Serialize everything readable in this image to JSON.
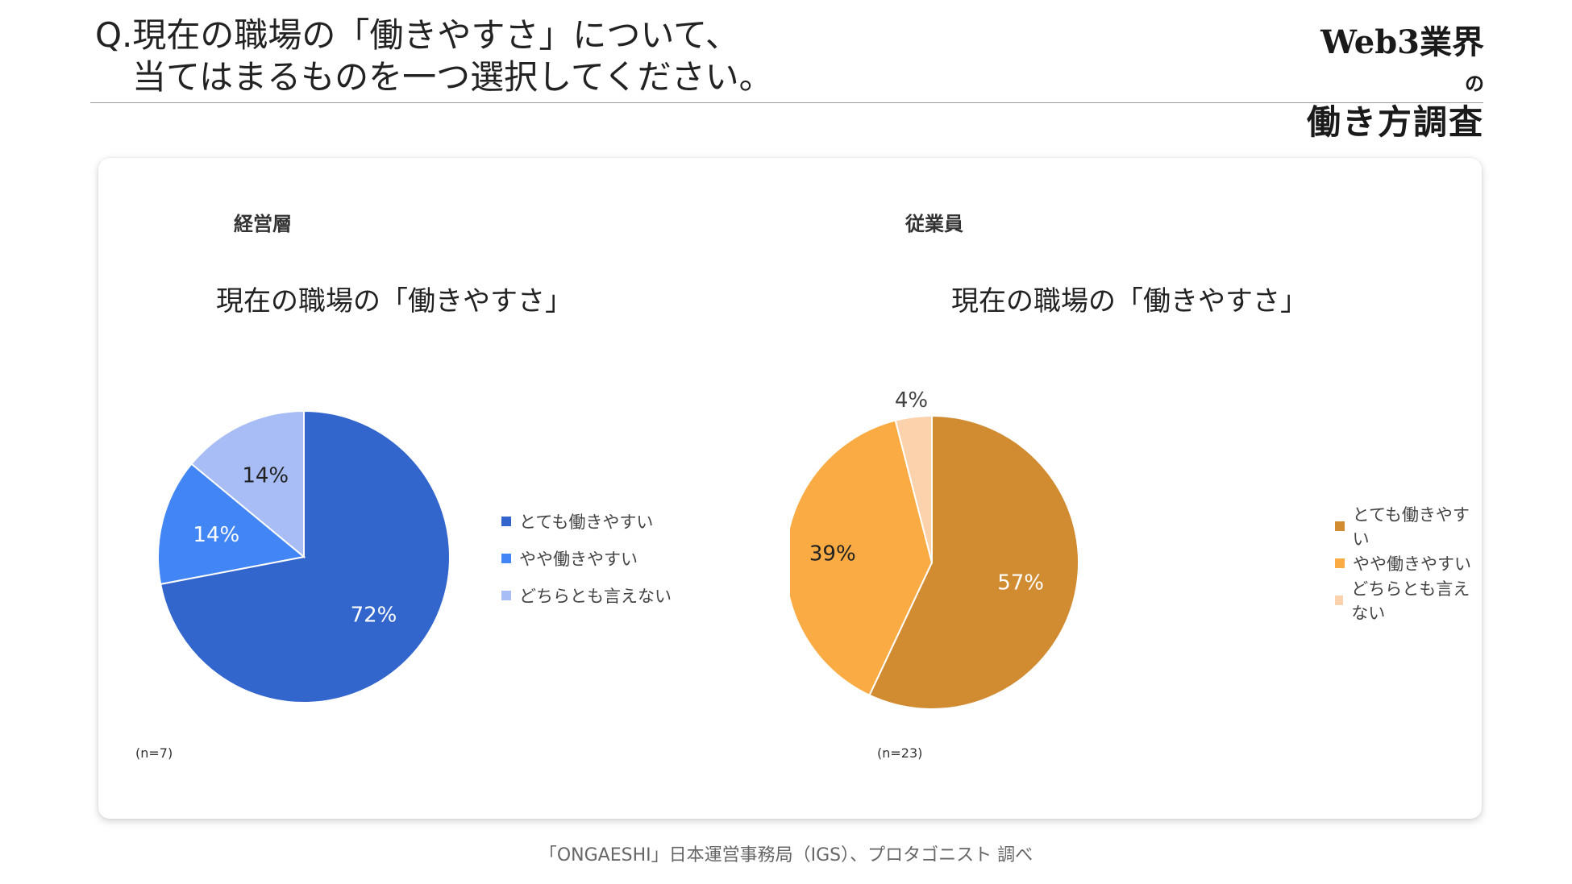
{
  "header": {
    "question_line1": "Q.現在の職場の「働きやすさ」について、",
    "question_line2": "当てはまるものを一つ選択してください。",
    "brand_main": "Web3業界",
    "brand_suffix": "の",
    "brand_line2": "働き方調査"
  },
  "panels": [
    {
      "heading": "経営層",
      "n_label": "(n=7)"
    },
    {
      "heading": "従業員",
      "n_label": "(n=23)"
    }
  ],
  "chart_data": [
    {
      "type": "pie",
      "title": "現在の職場の「働きやすさ」",
      "categories": [
        "とても働きやすい",
        "やや働きやすい",
        "どちらとも言えない"
      ],
      "values": [
        72,
        14,
        14
      ],
      "labels": [
        "72%",
        "14%",
        "14%"
      ],
      "colors": [
        "#3366cc",
        "#4285f4",
        "#a8bdf5"
      ],
      "label_colors": [
        "#ffffff",
        "#ffffff",
        "#222222"
      ],
      "legend_position": "right"
    },
    {
      "type": "pie",
      "title": "現在の職場の「働きやすさ」",
      "categories": [
        "とても働きやすい",
        "やや働きやすい",
        "どちらとも言えない"
      ],
      "values": [
        57,
        39,
        4
      ],
      "labels": [
        "57%",
        "39%",
        "4%"
      ],
      "colors": [
        "#d18c32",
        "#fbab43",
        "#fcd2ac"
      ],
      "label_colors": [
        "#ffffff",
        "#222222",
        "#444444"
      ],
      "legend_position": "right"
    }
  ],
  "footer": {
    "source": "「ONGAESHI」日本運営事務局（IGS）、プロタゴニスト 調べ"
  }
}
